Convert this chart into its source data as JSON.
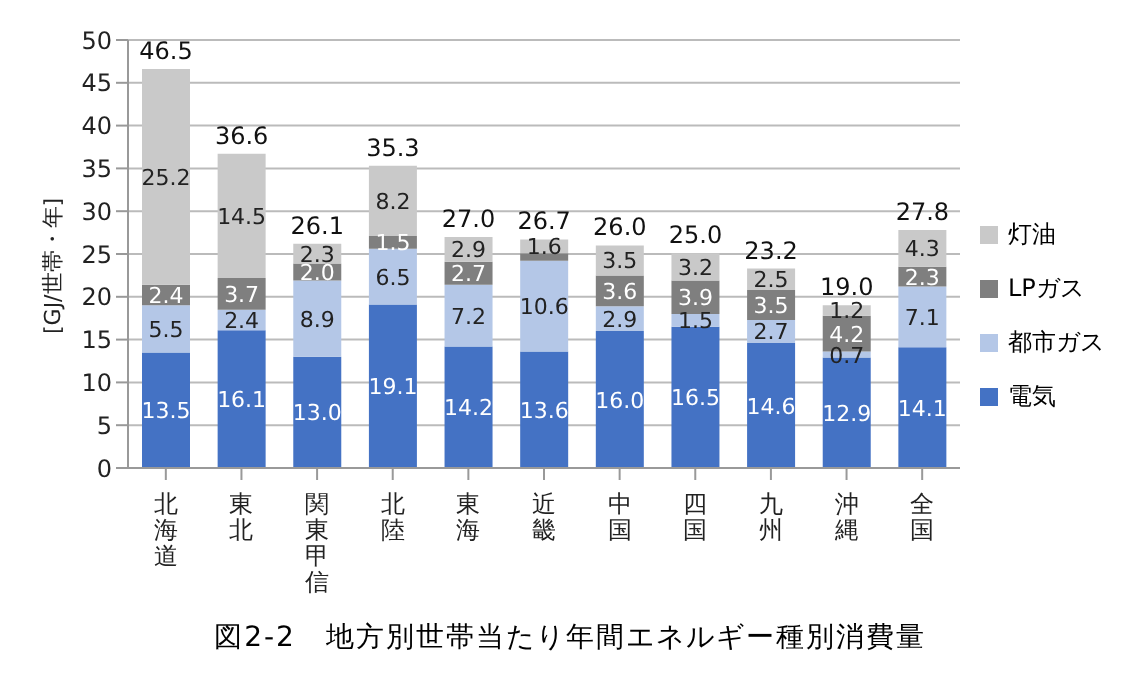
{
  "chart_data": {
    "type": "bar",
    "stacked": true,
    "title": "図2-2　地方別世帯当たり年間エネルギー種別消費量",
    "ylabel": "[GJ/世帯・年]",
    "categories": [
      "北海道",
      "東北",
      "関東甲信",
      "北陸",
      "東海",
      "近畿",
      "中国",
      "四国",
      "九州",
      "沖縄",
      "全国"
    ],
    "series": [
      {
        "name": "電気",
        "color": "#4472c4",
        "values": [
          13.5,
          16.1,
          13.0,
          19.1,
          14.2,
          13.6,
          16.0,
          16.5,
          14.6,
          12.9,
          14.1
        ],
        "value_labels": [
          "13.5",
          "16.1",
          "13.0",
          "19.1",
          "14.2",
          "13.6",
          "16.0",
          "16.5",
          "14.6",
          "12.9",
          "14.1"
        ]
      },
      {
        "name": "都市ガス",
        "color": "#b4c7e7",
        "values": [
          5.5,
          2.4,
          8.9,
          6.5,
          7.2,
          10.6,
          2.9,
          1.5,
          2.7,
          0.7,
          7.1
        ],
        "value_labels": [
          "5.5",
          "2.4",
          "8.9",
          "6.5",
          "7.2",
          "10.6",
          "2.9",
          "1.5",
          "2.7",
          "0.7",
          "7.1"
        ]
      },
      {
        "name": "LPガス",
        "color": "#7f7f7f",
        "values": [
          2.4,
          3.7,
          2.0,
          1.5,
          2.7,
          0.9,
          3.6,
          3.9,
          3.5,
          4.2,
          2.3
        ],
        "value_labels": [
          "2.4",
          "3.7",
          "2.0",
          "1.5",
          "2.7",
          null,
          "3.6",
          "3.9",
          "3.5",
          "4.2",
          "2.3"
        ]
      },
      {
        "name": "灯油",
        "color": "#c9c9c9",
        "values": [
          25.2,
          14.5,
          2.3,
          8.2,
          2.9,
          1.6,
          3.5,
          3.2,
          2.5,
          1.2,
          4.3
        ],
        "value_labels": [
          "25.2",
          "14.5",
          "2.3",
          "8.2",
          "2.9",
          "1.6",
          "3.5",
          "3.2",
          "2.5",
          "1.2",
          "4.3"
        ]
      }
    ],
    "totals": [
      "46.5",
      "36.6",
      "26.1",
      "35.3",
      "27.0",
      "26.7",
      "26.0",
      "25.0",
      "23.2",
      "19.0",
      "27.8"
    ],
    "ylim": [
      0,
      50
    ],
    "yticks": [
      0,
      5,
      10,
      15,
      20,
      25,
      30,
      35,
      40,
      45,
      50
    ],
    "grid": "y",
    "legend": "right"
  }
}
